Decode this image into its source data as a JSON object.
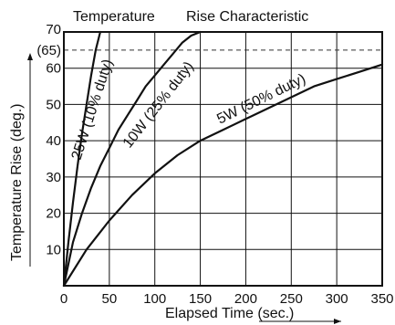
{
  "chart_data": {
    "type": "line",
    "title_part1": "Temperature",
    "title_part2": "Rise Characteristic",
    "xlabel": "Elapsed  Time (sec.)",
    "ylabel": "Temperature Rise (deg.)",
    "xlim": [
      0,
      350
    ],
    "ylim": [
      0,
      70
    ],
    "xticks": [
      0,
      50,
      100,
      150,
      200,
      250,
      300,
      350
    ],
    "yticks": [
      10,
      20,
      30,
      40,
      50,
      60,
      70
    ],
    "xtick_labels": [
      "0",
      "50",
      "100",
      "150",
      "200",
      "250",
      "300",
      "350"
    ],
    "ytick_labels": [
      "10",
      "20",
      "30",
      "40",
      "50",
      "60",
      "70"
    ],
    "grid": true,
    "reference_line": {
      "y": 65,
      "label": "(65)",
      "style": "dashed"
    },
    "series": [
      {
        "name": "25W (10% duty)",
        "x": [
          0,
          5,
          10,
          15,
          20,
          25,
          30,
          35,
          40
        ],
        "y": [
          0,
          12,
          23,
          33,
          42,
          50,
          58,
          65,
          70
        ]
      },
      {
        "name": "10W (25% duty)",
        "x": [
          0,
          10,
          20,
          30,
          40,
          50,
          60,
          70,
          80,
          90,
          100,
          110,
          120,
          130,
          140,
          150
        ],
        "y": [
          0,
          12,
          20,
          27,
          33,
          38,
          43,
          47,
          51,
          55,
          58,
          61,
          64,
          67,
          69,
          71
        ]
      },
      {
        "name": "5W (50% duty)",
        "x": [
          0,
          25,
          50,
          75,
          100,
          125,
          150,
          175,
          200,
          225,
          250,
          275,
          300,
          325,
          350
        ],
        "y": [
          0,
          10,
          18,
          25,
          31,
          36,
          40,
          43,
          46,
          49,
          52,
          55,
          57,
          59,
          61
        ]
      }
    ]
  }
}
